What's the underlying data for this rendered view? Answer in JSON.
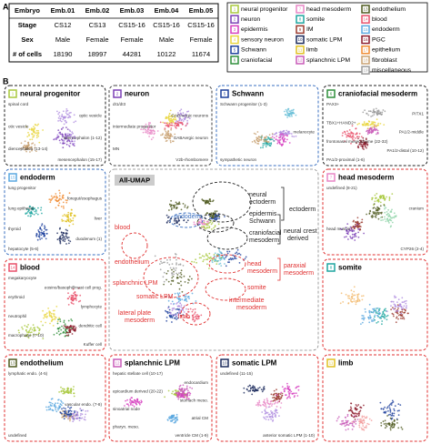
{
  "panel_a": {
    "label": "A",
    "header": [
      "Embryo",
      "Emb.01",
      "Emb.02",
      "Emb.03",
      "Emb.04",
      "Emb.05"
    ],
    "rows": [
      [
        "Stage",
        "CS12",
        "CS13",
        "CS15-16",
        "CS15-16",
        "CS15-16"
      ],
      [
        "Sex",
        "Male",
        "Female",
        "Female",
        "Male",
        "Female"
      ],
      [
        "# of cells",
        18190,
        18997,
        44281,
        10122,
        11674
      ]
    ]
  },
  "legend": [
    {
      "num": 1,
      "name": "neural progenitor",
      "color": "#a8c83c"
    },
    {
      "num": 2,
      "name": "neuron",
      "color": "#7b3fb5"
    },
    {
      "num": 3,
      "name": "epidermis",
      "color": "#d63fbf"
    },
    {
      "num": 4,
      "name": "sensory neuron",
      "color": "#e8d640"
    },
    {
      "num": 5,
      "name": "Schwann",
      "color": "#1c3f9c"
    },
    {
      "num": 6,
      "name": "craniofacial",
      "color": "#2f8f3a"
    },
    {
      "num": 7,
      "name": "head mesoderm",
      "color": "#e886c6"
    },
    {
      "num": 8,
      "name": "somite",
      "color": "#1fa6a0"
    },
    {
      "num": 9,
      "name": "IM",
      "color": "#9b3b2f"
    },
    {
      "num": 10,
      "name": "somatic LPM",
      "color": "#1b2a5c"
    },
    {
      "num": 11,
      "name": "limb",
      "color": "#e0c020"
    },
    {
      "num": 12,
      "name": "splanchnic LPM",
      "color": "#c85ab8"
    },
    {
      "num": 13,
      "name": "endothelium",
      "color": "#4f5a1f"
    },
    {
      "num": 14,
      "name": "blood",
      "color": "#e8506a"
    },
    {
      "num": 15,
      "name": "endoderm",
      "color": "#5aa8e0"
    },
    {
      "num": 16,
      "name": "PGC",
      "color": "#8c1c2c"
    },
    {
      "num": 17,
      "name": "epithelium",
      "color": "#f08a30"
    },
    {
      "num": 18,
      "name": "fibroblast",
      "color": "#c8a070"
    },
    {
      "num": 19,
      "name": "miscellaneous",
      "color": "#9a9a9a"
    }
  ],
  "panel_b": {
    "label": "B",
    "panels": [
      {
        "num": 1,
        "title": "neural progenitor",
        "color": "#a8c83c",
        "border": "#222222",
        "annotations": [
          "spinal cord",
          "optic vesicle",
          "otic vesicle",
          "telencephalon (1-12)",
          "diencephalon (13-14)",
          "mesencephalon (15-17)"
        ]
      },
      {
        "num": 2,
        "title": "neuron",
        "color": "#7b3fb5",
        "border": "#444444",
        "annotations": [
          "dI1/dI3",
          "GABAergic neurons",
          "intermediate progenitor",
          "GABAergic neuron",
          "MN",
          "V2b-rhombomere"
        ]
      },
      {
        "num": 5,
        "title": "Schwann",
        "color": "#1c3f9c",
        "border": "#3a6fc0",
        "annotations": [
          "Schwann progenitor (1-3)",
          "melanocyte",
          "sympathetic neuron"
        ]
      },
      {
        "num": 6,
        "title": "craniofacial mesoderm",
        "color": "#2f8f3a",
        "border": "#222222",
        "annotations": [
          "PAX3+",
          "PITX1",
          "TBX1+HAND2+",
          "PA1/2-middle",
          "frontonasal mesenchyme (22-32)",
          "PA1/2-distal (10-12)",
          "PA1/2-proximal (1-6)"
        ]
      },
      {
        "num": 15,
        "title": "endoderm",
        "color": "#5aa8e0",
        "border": "#3a6fc0",
        "annotations": [
          "lung progenitor",
          "foregut/esophagus",
          "lung epithelial",
          "liver",
          "thyroid",
          "duodenum (1)",
          "hepatocyte (5-6)"
        ]
      },
      {
        "num": 7,
        "title": "head mesoderm",
        "color": "#e886c6",
        "border": "#e03030",
        "annotations": [
          "undefined (8-21)",
          "cranium",
          "head muscle",
          "CYP26 (2-4)"
        ]
      },
      {
        "num": 14,
        "title": "blood",
        "color": "#e8506a",
        "border": "#e03030",
        "annotations": [
          "megakaryocyte",
          "eosino/basophil/mast cell prog.",
          "erythroid",
          "lymphocyte",
          "neutrophil",
          "dendritic cell",
          "macrophage (7-10)",
          "Kuffer cell"
        ]
      },
      {
        "num": 8,
        "title": "somite",
        "color": "#1fa6a0",
        "border": "#e03030",
        "annotations": []
      },
      {
        "num": 13,
        "title": "endothelium",
        "color": "#4f5a1f",
        "border": "#e03030",
        "annotations": [
          "lymphatic endo. (4-5)",
          "vascular endo. (7-8)",
          "undefined"
        ]
      },
      {
        "num": 12,
        "title": "splanchnic LPM",
        "color": "#c85ab8",
        "border": "#e03030",
        "annotations": [
          "hepatic stellate cell (10-17)",
          "endocardium",
          "epicardium derived (20-22)",
          "stomach meso.",
          "sinoatrial node",
          "atrial CM",
          "pharyn. meso.",
          "ventricle CM (1-9)"
        ]
      },
      {
        "num": 10,
        "title": "somatic LPM",
        "color": "#1b2a5c",
        "border": "#e03030",
        "annotations": [
          "undefined (11-15)",
          "anterior somatic LPM (1-10)"
        ]
      },
      {
        "num": 11,
        "title": "limb",
        "color": "#e0c020",
        "border": "#e03030",
        "annotations": []
      }
    ],
    "umap": {
      "title": "All-UMAP",
      "labels": [
        {
          "text": "endoderm",
          "color": "#3a6fc0"
        },
        {
          "text": "blood",
          "color": "#e03030"
        },
        {
          "text": "endothelium",
          "color": "#e03030"
        },
        {
          "text": "splanchnic LPM",
          "color": "#e03030"
        },
        {
          "text": "somatic LPM",
          "color": "#e03030"
        },
        {
          "text": "lateral plate",
          "color": "#e03030"
        },
        {
          "text": "mesoderm",
          "color": "#e03030"
        },
        {
          "text": "limb",
          "color": "#e03030"
        },
        {
          "text": "head",
          "color": "#e03030"
        },
        {
          "text": "mesoderm",
          "color": "#e03030"
        },
        {
          "text": "paraxial",
          "color": "#e03030"
        },
        {
          "text": "mesoderm",
          "color": "#e03030"
        },
        {
          "text": "somite",
          "color": "#e03030"
        },
        {
          "text": "intermediate",
          "color": "#e03030"
        },
        {
          "text": "mesoderm",
          "color": "#e03030"
        },
        {
          "text": "neural",
          "color": "#222222"
        },
        {
          "text": "ectoderm",
          "color": "#222222"
        },
        {
          "text": "epidermis",
          "color": "#222222"
        },
        {
          "text": "Schwann",
          "color": "#222222"
        },
        {
          "text": "ectoderm",
          "color": "#222222"
        },
        {
          "text": "craniofacial",
          "color": "#222222"
        },
        {
          "text": "mesoderm",
          "color": "#222222"
        },
        {
          "text": "neural crest",
          "color": "#222222"
        },
        {
          "text": "derived",
          "color": "#222222"
        }
      ]
    }
  }
}
